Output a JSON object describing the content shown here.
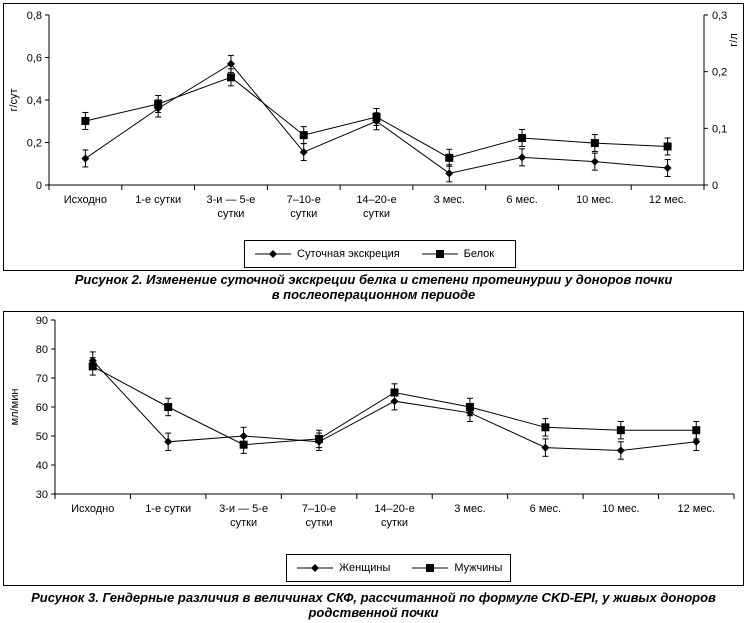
{
  "chart_data": [
    {
      "type": "line",
      "categories": [
        "Исходно",
        [
          "1-е сутки"
        ],
        [
          "3-и — 5-е",
          "сутки"
        ],
        [
          "7–10-е",
          "сутки"
        ],
        [
          "14–20-е",
          "сутки"
        ],
        [
          "3 мес."
        ],
        [
          "6 мес."
        ],
        [
          "10 мес."
        ],
        [
          "12 мес."
        ]
      ],
      "ylabel": "г/сут",
      "ylim": [
        0,
        0.8
      ],
      "yticks": [
        "0",
        "0,2",
        "0,4",
        "0,6",
        "0,8"
      ],
      "y2label": "г/л",
      "y2lim": [
        0,
        0.3
      ],
      "y2ticks": [
        "0",
        "0,1",
        "0,2",
        "0,3"
      ],
      "series": [
        {
          "name": "Суточная экскреция",
          "axis": "left",
          "marker": "diamond",
          "values": [
            0.125,
            0.36,
            0.57,
            0.155,
            0.3,
            0.055,
            0.13,
            0.11,
            0.08
          ],
          "errors": [
            0.04,
            0.04,
            0.04,
            0.04,
            0.04,
            0.04,
            0.04,
            0.04,
            0.04
          ]
        },
        {
          "name": "Белок",
          "axis": "right",
          "marker": "square",
          "values": [
            0.113,
            0.143,
            0.19,
            0.088,
            0.12,
            0.048,
            0.083,
            0.074,
            0.068
          ],
          "errors": [
            0.015,
            0.015,
            0.015,
            0.015,
            0.015,
            0.015,
            0.015,
            0.015,
            0.015
          ]
        }
      ],
      "caption": [
        "Рисунок 2. Изменение суточной экскреции белка и степени протеинурии у доноров почки",
        "в послеоперационном периоде"
      ]
    },
    {
      "type": "line",
      "categories": [
        [
          "Исходно"
        ],
        [
          "1-е сутки"
        ],
        [
          "3-и — 5-е",
          "сутки"
        ],
        [
          "7–10-е",
          "сутки"
        ],
        [
          "14–20-е",
          "сутки"
        ],
        [
          "3 мес."
        ],
        [
          "6 мес."
        ],
        [
          "10 мес."
        ],
        [
          "12 мес."
        ]
      ],
      "ylabel": "мл/мин",
      "ylim": [
        30,
        90
      ],
      "yticks": [
        "30",
        "40",
        "50",
        "60",
        "70",
        "80",
        "90"
      ],
      "series": [
        {
          "name": "Женщины",
          "marker": "diamond",
          "values": [
            76,
            48,
            50,
            48,
            62,
            58,
            46,
            45,
            48
          ],
          "errors": [
            3,
            3,
            3,
            3,
            3,
            3,
            3,
            3,
            3
          ]
        },
        {
          "name": "Мужчины",
          "marker": "square",
          "values": [
            74,
            60,
            47,
            49,
            65,
            60,
            53,
            52,
            52
          ],
          "errors": [
            3,
            3,
            3,
            3,
            3,
            3,
            3,
            3,
            3
          ]
        }
      ],
      "caption": [
        "Рисунок 3. Гендерные различия в величинах СКФ, рассчитанной по формуле CKD-EPI, у живых доноров",
        "родственной почки"
      ]
    }
  ]
}
